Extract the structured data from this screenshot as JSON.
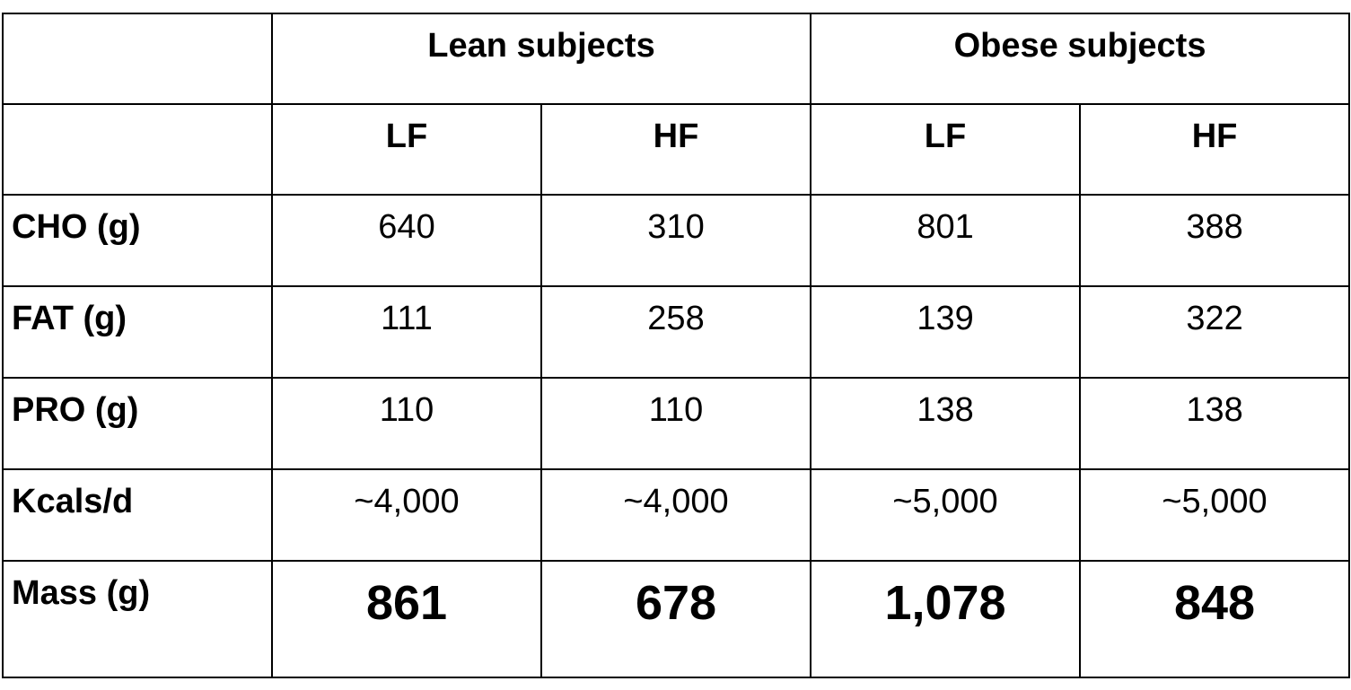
{
  "table": {
    "header": [
      "Lean subjects",
      "Obese subjects"
    ],
    "subheader": [
      "LF",
      "HF",
      "LF",
      "HF"
    ],
    "rows": [
      [
        "CHO (g)",
        "640",
        "310",
        "801",
        "388"
      ],
      [
        "FAT (g)",
        "111",
        "258",
        "139",
        "322"
      ],
      [
        "PRO (g)",
        "110",
        "110",
        "138",
        "138"
      ],
      [
        "Kcals/d",
        "~4,000",
        "~4,000",
        "~5,000",
        "~5,000"
      ],
      [
        "Mass (g)",
        "861",
        "678",
        "1,078",
        "848"
      ]
    ]
  }
}
